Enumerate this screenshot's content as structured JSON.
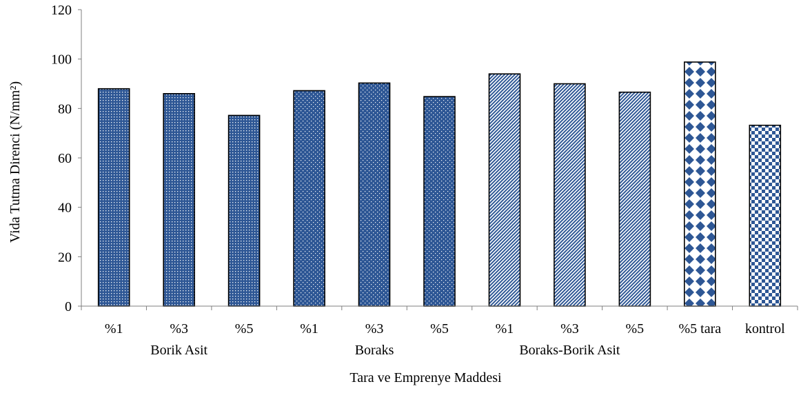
{
  "chart_data": {
    "type": "bar",
    "title": "",
    "xlabel": "Tara ve Emprenye Maddesi",
    "ylabel": "Vida Tutma Direnci (N/mm²)",
    "ylim": [
      0,
      120
    ],
    "yticks": [
      "0",
      "20",
      "40",
      "60",
      "80",
      "100",
      "120"
    ],
    "grid": false,
    "legend": "none",
    "categories": [
      "%1",
      "%3",
      "%5",
      "%1",
      "%3",
      "%5",
      "%1",
      "%3",
      "%5",
      "%5 tara",
      "kontrol"
    ],
    "groups": [
      {
        "label": "Borik Asit",
        "members": [
          0,
          1,
          2
        ]
      },
      {
        "label": "Boraks",
        "members": [
          3,
          4,
          5
        ]
      },
      {
        "label": "Boraks-Borik Asit",
        "members": [
          6,
          7,
          8
        ]
      }
    ],
    "values": [
      88,
      86,
      77.2,
      87.2,
      90.3,
      84.8,
      94,
      90,
      86.6,
      98.8,
      73.2
    ],
    "patterns": [
      "dense-dots",
      "dense-dots",
      "dense-dots",
      "sparse-dots",
      "sparse-dots",
      "sparse-dots",
      "diagonal-stripes",
      "diagonal-stripes",
      "diagonal-stripes",
      "large-diamonds",
      "checkerboard"
    ],
    "colors": {
      "fill": "#2e5795",
      "background": "#ffffff",
      "outline": "#000000",
      "axis": "#7f7f7f"
    }
  }
}
